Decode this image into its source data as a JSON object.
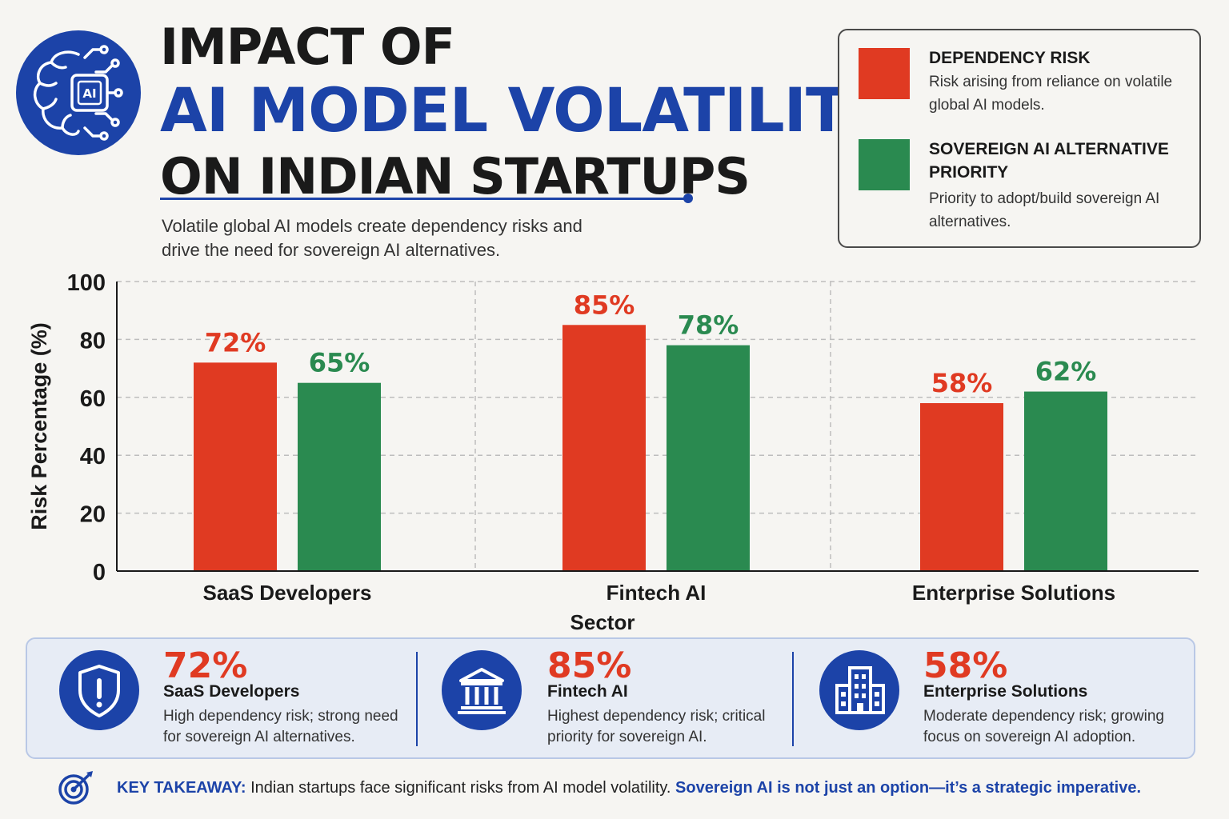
{
  "header": {
    "logo_text": "AI",
    "title_line1": "IMPACT OF",
    "title_line2": "AI MODEL VOLATILITY",
    "title_line3": "ON INDIAN STARTUPS",
    "subtitle": "Volatile global AI models create dependency risks and drive the need for sovereign AI alternatives."
  },
  "legend": {
    "items": [
      {
        "title": "DEPENDENCY RISK",
        "description": "Risk arising from reliance on volatile global AI models.",
        "color": "#e03a22"
      },
      {
        "title": "SOVEREIGN AI ALTERNATIVE PRIORITY",
        "description": "Priority to adopt/build sovereign AI alternatives.",
        "color": "#2a8a50"
      }
    ]
  },
  "chart_data": {
    "type": "bar",
    "categories": [
      "SaaS Developers",
      "Fintech AI",
      "Enterprise Solutions"
    ],
    "series": [
      {
        "name": "DEPENDENCY RISK",
        "values": [
          72,
          85,
          58
        ],
        "color": "#e03a22"
      },
      {
        "name": "SOVEREIGN AI ALTERNATIVE PRIORITY",
        "values": [
          65,
          78,
          62
        ],
        "color": "#2a8a50"
      }
    ],
    "value_labels": [
      [
        "72%",
        "85%",
        "58%"
      ],
      [
        "65%",
        "78%",
        "62%"
      ]
    ],
    "xlabel": "Sector",
    "ylabel": "Risk Percentage (%)",
    "ylim": [
      0,
      100
    ],
    "yticks": [
      0,
      20,
      40,
      60,
      80,
      100
    ],
    "ytick_labels": [
      "0",
      "20",
      "40",
      "60",
      "80",
      "100"
    ],
    "grid": true,
    "legend_position": "top-right"
  },
  "stats": [
    {
      "value": "72%",
      "label": "SaaS Developers",
      "description": "High dependency risk; strong need for sovereign AI alternatives.",
      "icon": "shield-alert-icon"
    },
    {
      "value": "85%",
      "label": "Fintech AI",
      "description": "Highest dependency risk; critical priority for sovereign AI.",
      "icon": "bank-icon"
    },
    {
      "value": "58%",
      "label": "Enterprise Solutions",
      "description": "Moderate dependency risk; growing focus on sovereign AI adoption.",
      "icon": "building-icon"
    }
  ],
  "takeaway": {
    "icon": "target-icon",
    "label": "KEY TAKEAWAY:",
    "text": " Indian startups face significant risks from AI model volatility. ",
    "emphasis": "Sovereign AI is not just an option—it’s a strategic imperative."
  },
  "colors": {
    "accent": "#1c43a8",
    "risk": "#e03a22",
    "sovereign": "#2a8a50",
    "background": "#f6f5f2"
  }
}
